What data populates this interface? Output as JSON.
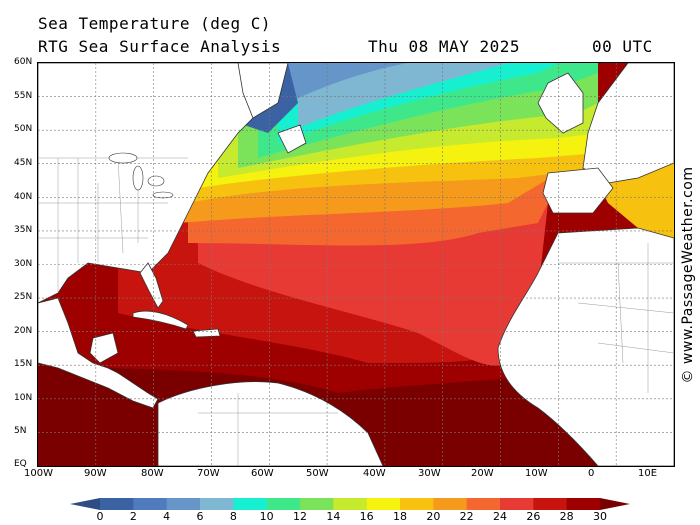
{
  "header": {
    "title": "Sea Temperature (deg C)",
    "subtitle": "RTG Sea Surface Analysis",
    "date": "Thu 08 MAY 2025",
    "time": "00 UTC"
  },
  "credit": "© www.PassageWeather.com",
  "lat_labels": [
    "60N",
    "55N",
    "50N",
    "45N",
    "40N",
    "35N",
    "30N",
    "25N",
    "20N",
    "15N",
    "10N",
    "5N",
    "EQ"
  ],
  "lon_labels": [
    "100W",
    "90W",
    "80W",
    "70W",
    "60W",
    "50W",
    "40W",
    "30W",
    "20W",
    "10W",
    "0",
    "10E"
  ],
  "legend": {
    "ticks": [
      "0",
      "2",
      "4",
      "6",
      "8",
      "10",
      "12",
      "14",
      "16",
      "18",
      "20",
      "22",
      "24",
      "26",
      "28",
      "30"
    ],
    "colors": [
      "#2e4d85",
      "#3b62a3",
      "#4f7bbd",
      "#6595c9",
      "#7fb7d3",
      "#17f0d0",
      "#3ee88a",
      "#7be35a",
      "#c5ea2e",
      "#f4f20e",
      "#f7c20f",
      "#f59a1a",
      "#f4672f",
      "#e83a34",
      "#c8140e",
      "#9e0000",
      "#7a0000"
    ]
  },
  "colors": {
    "land": "#ffffff",
    "border": "#888888"
  }
}
